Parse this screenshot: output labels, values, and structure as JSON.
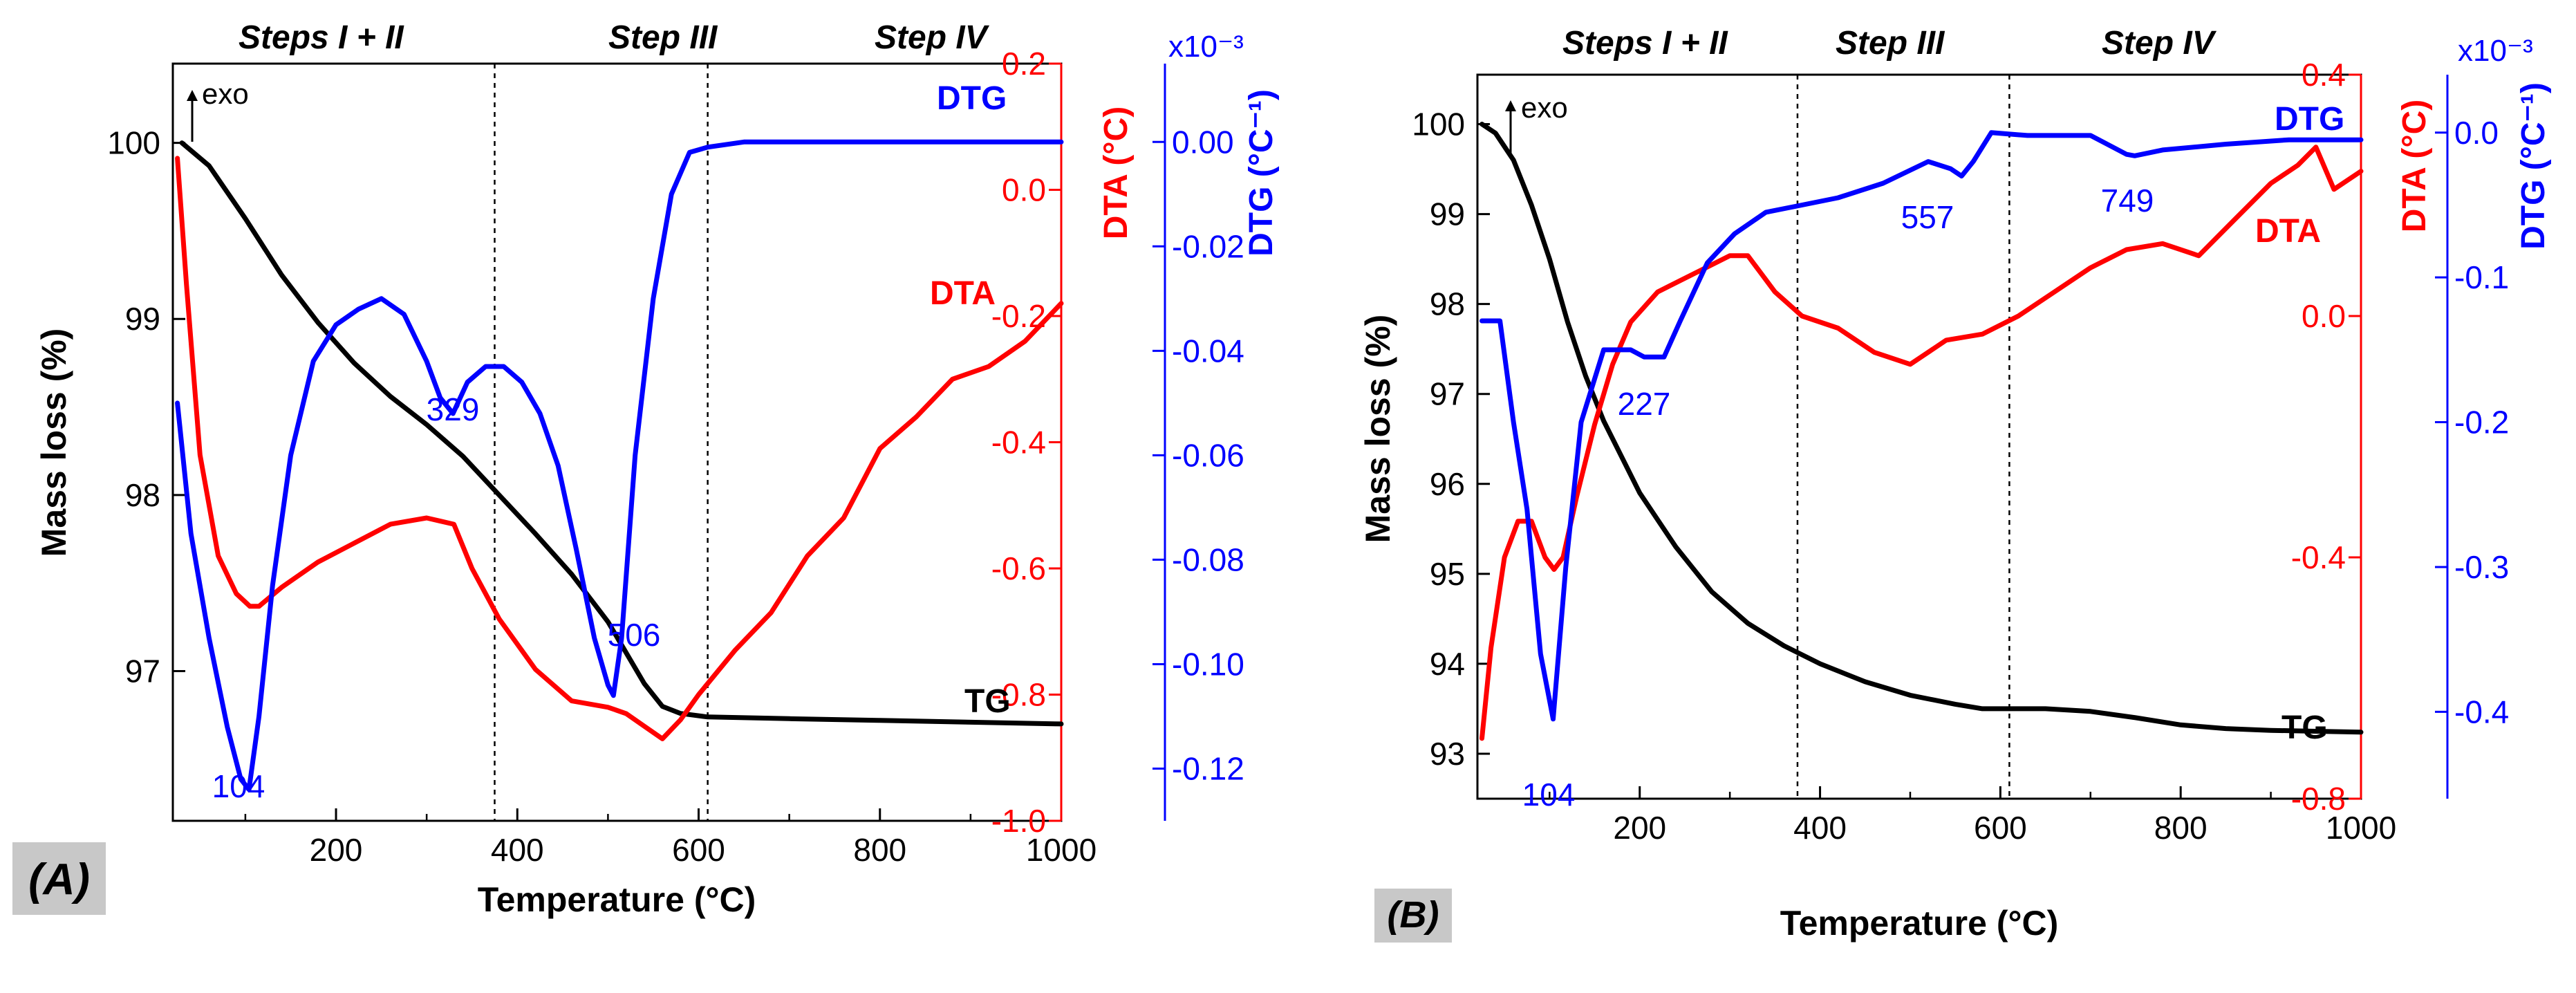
{
  "figure": {
    "colors": {
      "tg": "#000000",
      "dta": "#ff0000",
      "dtg": "#0000ff",
      "label_box": "#c8c8c8"
    }
  },
  "chart_data": [
    {
      "type": "line",
      "panel_label": "(A)",
      "xlabel": "Temperature (°C)",
      "xlim": [
        20,
        1000
      ],
      "xticks": [
        200,
        400,
        600,
        800,
        1000
      ],
      "steps": [
        "Steps I + II",
        "Step III",
        "Step IV"
      ],
      "step_boundaries": [
        375,
        610
      ],
      "exo_label": "exo",
      "axes": {
        "tg": {
          "label": "Mass loss (%)",
          "ylim": [
            96.15,
            100.45
          ],
          "ticks": [
            97,
            98,
            99,
            100
          ]
        },
        "dta": {
          "label": "DTA (°C)",
          "ylim": [
            -1.0,
            0.2
          ],
          "ticks": [
            0.2,
            0.0,
            -0.2,
            -0.4,
            -0.6,
            -0.8,
            -1.0
          ],
          "tick_labels": [
            "0.2",
            "0.0",
            "-0.2",
            "-0.4",
            "-0.6",
            "-0.8",
            "-1.0"
          ]
        },
        "dtg": {
          "label": "DTG (°C⁻¹)",
          "multiplier": "x10⁻³",
          "ylim": [
            -0.13,
            0.015
          ],
          "ticks": [
            0.0,
            -0.02,
            -0.04,
            -0.06,
            -0.08,
            -0.1,
            -0.12
          ],
          "tick_labels": [
            "0.00",
            "-0.02",
            "-0.04",
            "-0.06",
            "-0.08",
            "-0.10",
            "-0.12"
          ]
        }
      },
      "series": [
        {
          "name": "TG",
          "axis": "tg",
          "x": [
            30,
            60,
            100,
            140,
            180,
            220,
            260,
            300,
            340,
            380,
            420,
            460,
            500,
            540,
            560,
            580,
            610,
            700,
            800,
            900,
            1000
          ],
          "y": [
            100.0,
            99.87,
            99.57,
            99.25,
            98.98,
            98.75,
            98.56,
            98.4,
            98.22,
            98.0,
            97.78,
            97.55,
            97.28,
            96.93,
            96.8,
            96.76,
            96.74,
            96.73,
            96.72,
            96.71,
            96.7
          ]
        },
        {
          "name": "DTA",
          "axis": "dta",
          "x": [
            25,
            35,
            50,
            70,
            90,
            105,
            115,
            140,
            180,
            220,
            260,
            300,
            330,
            350,
            380,
            420,
            460,
            500,
            520,
            540,
            560,
            580,
            600,
            640,
            680,
            720,
            760,
            800,
            840,
            880,
            920,
            960,
            1000
          ],
          "y": [
            0.05,
            -0.15,
            -0.42,
            -0.58,
            -0.64,
            -0.66,
            -0.66,
            -0.63,
            -0.59,
            -0.56,
            -0.53,
            -0.52,
            -0.53,
            -0.6,
            -0.68,
            -0.76,
            -0.81,
            -0.82,
            -0.83,
            -0.85,
            -0.87,
            -0.84,
            -0.8,
            -0.73,
            -0.67,
            -0.58,
            -0.52,
            -0.41,
            -0.36,
            -0.3,
            -0.28,
            -0.24,
            -0.18
          ]
        },
        {
          "name": "DTG",
          "axis": "dtg",
          "x": [
            25,
            40,
            60,
            80,
            95,
            104,
            115,
            130,
            150,
            175,
            200,
            225,
            250,
            275,
            300,
            315,
            329,
            345,
            365,
            385,
            405,
            425,
            445,
            465,
            485,
            500,
            506,
            515,
            530,
            550,
            570,
            590,
            610,
            650,
            700,
            750,
            800,
            850,
            900,
            950,
            1000
          ],
          "y": [
            -0.05,
            -0.075,
            -0.095,
            -0.112,
            -0.122,
            -0.124,
            -0.11,
            -0.085,
            -0.06,
            -0.042,
            -0.035,
            -0.032,
            -0.03,
            -0.033,
            -0.042,
            -0.049,
            -0.052,
            -0.046,
            -0.043,
            -0.043,
            -0.046,
            -0.052,
            -0.062,
            -0.078,
            -0.095,
            -0.104,
            -0.106,
            -0.095,
            -0.06,
            -0.03,
            -0.01,
            -0.002,
            -0.001,
            0.0,
            0.0,
            0.0,
            0.0,
            0.0,
            0.0,
            0.0,
            0.0
          ]
        }
      ],
      "annotations": {
        "curve_labels": {
          "tg": "TG",
          "dta": "DTA",
          "dtg": "DTG"
        },
        "peaks": [
          "104",
          "329",
          "506"
        ]
      }
    },
    {
      "type": "line",
      "panel_label": "(B)",
      "xlabel": "Temperature (°C)",
      "xlim": [
        20,
        1000
      ],
      "xticks": [
        200,
        400,
        600,
        800,
        1000
      ],
      "steps": [
        "Steps I + II",
        "Step III",
        "Step IV"
      ],
      "step_boundaries": [
        375,
        610
      ],
      "exo_label": "exo",
      "axes": {
        "tg": {
          "label": "Mass loss (%)",
          "ylim": [
            92.5,
            100.55
          ],
          "ticks": [
            93,
            94,
            95,
            96,
            97,
            98,
            99,
            100
          ]
        },
        "dta": {
          "label": "DTA (°C)",
          "ylim": [
            -0.8,
            0.4
          ],
          "ticks": [
            0.4,
            0.0,
            -0.4,
            -0.8
          ],
          "tick_labels": [
            "0.4",
            "0.0",
            "-0.4",
            "-0.8"
          ]
        },
        "dtg": {
          "label": "DTG (°C⁻¹)",
          "multiplier": "x10⁻³",
          "ylim": [
            -0.46,
            0.04
          ],
          "ticks": [
            0.0,
            -0.1,
            -0.2,
            -0.3,
            -0.4
          ],
          "tick_labels": [
            "0.0",
            "-0.1",
            "-0.2",
            "-0.3",
            "-0.4"
          ]
        }
      },
      "series": [
        {
          "name": "TG",
          "axis": "tg",
          "x": [
            25,
            40,
            60,
            80,
            100,
            120,
            140,
            160,
            180,
            200,
            240,
            280,
            320,
            360,
            400,
            450,
            500,
            550,
            580,
            600,
            650,
            700,
            750,
            800,
            850,
            900,
            950,
            1000
          ],
          "y": [
            100.0,
            99.9,
            99.6,
            99.1,
            98.5,
            97.8,
            97.2,
            96.7,
            96.3,
            95.9,
            95.3,
            94.8,
            94.45,
            94.2,
            94.0,
            93.8,
            93.65,
            93.55,
            93.5,
            93.5,
            93.5,
            93.47,
            93.4,
            93.32,
            93.28,
            93.26,
            93.25,
            93.24
          ]
        },
        {
          "name": "DTA",
          "axis": "dta",
          "x": [
            25,
            35,
            50,
            65,
            80,
            95,
            105,
            115,
            130,
            150,
            170,
            190,
            220,
            260,
            300,
            320,
            350,
            380,
            420,
            460,
            500,
            540,
            580,
            620,
            660,
            700,
            740,
            780,
            820,
            860,
            900,
            930,
            950,
            970,
            1000
          ],
          "y": [
            -0.7,
            -0.55,
            -0.4,
            -0.34,
            -0.34,
            -0.4,
            -0.42,
            -0.4,
            -0.3,
            -0.18,
            -0.08,
            -0.01,
            0.04,
            0.07,
            0.1,
            0.1,
            0.04,
            -0.0,
            -0.02,
            -0.06,
            -0.08,
            -0.04,
            -0.03,
            0.0,
            0.04,
            0.08,
            0.11,
            0.12,
            0.1,
            0.16,
            0.22,
            0.25,
            0.28,
            0.21,
            0.24
          ]
        },
        {
          "name": "DTG",
          "axis": "dtg",
          "x": [
            25,
            45,
            60,
            75,
            90,
            104,
            118,
            135,
            160,
            190,
            205,
            227,
            245,
            275,
            305,
            340,
            380,
            420,
            470,
            520,
            545,
            557,
            570,
            590,
            630,
            700,
            740,
            749,
            780,
            850,
            920,
            1000
          ],
          "y": [
            -0.13,
            -0.13,
            -0.2,
            -0.26,
            -0.36,
            -0.405,
            -0.3,
            -0.2,
            -0.15,
            -0.15,
            -0.155,
            -0.155,
            -0.13,
            -0.09,
            -0.07,
            -0.055,
            -0.05,
            -0.045,
            -0.035,
            -0.02,
            -0.025,
            -0.03,
            -0.02,
            0.0,
            -0.002,
            -0.002,
            -0.015,
            -0.016,
            -0.012,
            -0.008,
            -0.005,
            -0.005
          ]
        }
      ],
      "annotations": {
        "curve_labels": {
          "tg": "TG",
          "dta": "DTA",
          "dtg": "DTG"
        },
        "peaks": [
          "104",
          "227",
          "557",
          "749"
        ]
      }
    }
  ]
}
